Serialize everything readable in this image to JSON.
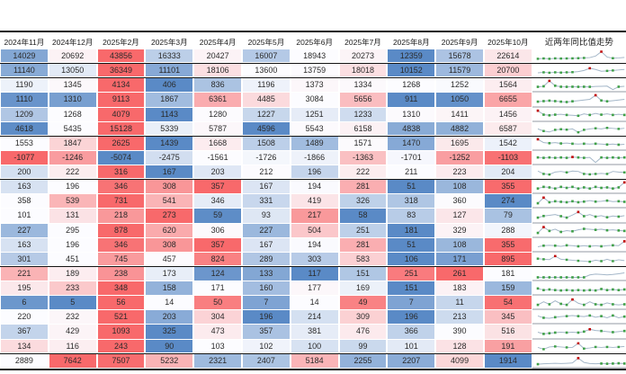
{
  "colors": {
    "scale_low": "#5A8AC6",
    "scale_mid": "#FCFCFF",
    "scale_high": "#F8696B",
    "spark_line": "#A3B6C8",
    "marker_green": "#3FA047",
    "marker_red": "#C00000",
    "group_line": "#141414"
  },
  "header": {
    "months": [
      "2024年11月",
      "2024年12月",
      "2025年2月",
      "2025年3月",
      "2025年4月",
      "2025年5月",
      "2025年6月",
      "2025年7月",
      "2025年8月",
      "2025年9月",
      "2025年10月"
    ],
    "trend_label": "近两年同比值走势"
  },
  "chart_data": {
    "type": "table",
    "columns": [
      "2024年11月",
      "2024年12月",
      "2025年2月",
      "2025年3月",
      "2025年4月",
      "2025年5月",
      "2025年6月",
      "2025年7月",
      "2025年8月",
      "2025年9月",
      "2025年10月"
    ],
    "trend_column": "近两年同比值走势",
    "color_scale": "per-row blue(min) → white(median) → red(max)",
    "group_break_after_rows": [
      1,
      2,
      6,
      9,
      15,
      21
    ],
    "rows": [
      {
        "values": [
          14029,
          20692,
          43856,
          16333,
          20427,
          16007,
          18943,
          20273,
          12359,
          15678,
          22614
        ]
      },
      {
        "values": [
          11140,
          13050,
          36349,
          11101,
          18106,
          13600,
          13759,
          18018,
          10152,
          11579,
          20700
        ]
      },
      {
        "values": [
          1190,
          1345,
          4134,
          406,
          836,
          1196,
          1373,
          1334,
          1268,
          1252,
          1564
        ]
      },
      {
        "values": [
          1110,
          1310,
          9113,
          1867,
          6361,
          4485,
          3084,
          5656,
          911,
          1050,
          6655
        ]
      },
      {
        "values": [
          1209,
          1268,
          4079,
          1143,
          1280,
          1227,
          1251,
          1233,
          1310,
          1411,
          1456
        ]
      },
      {
        "values": [
          4618,
          5435,
          15128,
          5339,
          5787,
          4596,
          5543,
          6158,
          4838,
          4882,
          6587
        ]
      },
      {
        "values": [
          1553,
          1847,
          2625,
          1439,
          1668,
          1508,
          1489,
          1571,
          1470,
          1695,
          1542
        ]
      },
      {
        "values": [
          -1077,
          -1246,
          -5074,
          -2475,
          -1561,
          -1726,
          -1866,
          -1363,
          -1701,
          -1252,
          -1103
        ]
      },
      {
        "values": [
          200,
          222,
          316,
          167,
          203,
          212,
          196,
          222,
          211,
          223,
          204
        ]
      },
      {
        "values": [
          163,
          196,
          346,
          308,
          357,
          167,
          194,
          281,
          51,
          108,
          355
        ]
      },
      {
        "values": [
          358,
          539,
          731,
          541,
          346,
          331,
          419,
          326,
          318,
          360,
          274
        ]
      },
      {
        "values": [
          101,
          131,
          218,
          273,
          59,
          93,
          217,
          58,
          83,
          127,
          79
        ]
      },
      {
        "values": [
          227,
          295,
          878,
          620,
          306,
          227,
          504,
          251,
          181,
          329,
          288
        ]
      },
      {
        "values": [
          163,
          196,
          346,
          308,
          357,
          167,
          194,
          281,
          51,
          108,
          355
        ]
      },
      {
        "values": [
          301,
          451,
          745,
          457,
          824,
          289,
          303,
          583,
          106,
          171,
          895
        ]
      },
      {
        "values": [
          221,
          189,
          238,
          173,
          124,
          133,
          117,
          151,
          251,
          261,
          181
        ]
      },
      {
        "values": [
          195,
          233,
          348,
          158,
          171,
          160,
          177,
          169,
          151,
          183,
          159
        ]
      },
      {
        "values": [
          6,
          5,
          56,
          14,
          50,
          7,
          14,
          49,
          7,
          11,
          54
        ]
      },
      {
        "values": [
          220,
          232,
          521,
          203,
          304,
          196,
          214,
          309,
          196,
          213,
          345
        ]
      },
      {
        "values": [
          367,
          429,
          1093,
          325,
          473,
          357,
          381,
          476,
          366,
          390,
          516
        ]
      },
      {
        "values": [
          134,
          116,
          243,
          90,
          103,
          102,
          100,
          99,
          101,
          128,
          191
        ]
      },
      {
        "values": [
          2889,
          7642,
          7507,
          5232,
          2321,
          2407,
          5184,
          2255,
          2207,
          4099,
          1914
        ]
      }
    ]
  },
  "sparklines": [
    {
      "points": [
        0.22,
        0.25,
        0.22,
        0.26,
        0.24,
        0.25,
        0.26,
        0.28,
        0.3,
        0.34,
        0.5,
        0.95,
        0.4,
        0.28,
        0.3,
        0.36
      ],
      "green": [
        0,
        1,
        2,
        3,
        4,
        5,
        6,
        7,
        8,
        13
      ],
      "red": 11
    },
    {
      "points": [
        0.25,
        0.3,
        0.26,
        0.3,
        0.28,
        0.3,
        0.32,
        0.38,
        0.5,
        0.72,
        0.6,
        0.42,
        0.45,
        0.5,
        0.55,
        0.6
      ],
      "green": [
        1,
        2,
        3,
        4,
        5,
        6,
        12,
        13
      ],
      "red": 9
    },
    {
      "points": [
        0.35,
        0.4,
        0.92,
        0.45,
        0.36,
        0.35,
        0.36,
        0.35,
        0.36,
        0.35,
        0.38,
        0.4,
        0.42,
        0.08,
        0.36,
        0.4
      ],
      "green": [
        0,
        1,
        3,
        4,
        5,
        6,
        7,
        8,
        9,
        14
      ],
      "red": 2
    },
    {
      "points": [
        0.3,
        0.36,
        0.4,
        0.36,
        0.3,
        0.27,
        0.34,
        0.4,
        0.46,
        0.52,
        0.92,
        0.42,
        0.34,
        0.4,
        0.46,
        0.52
      ],
      "green": [
        0,
        1,
        2,
        3,
        4,
        5,
        6,
        11,
        12
      ],
      "red": 10
    },
    {
      "points": [
        0.9,
        0.52,
        0.46,
        0.52,
        0.56,
        0.5,
        0.46,
        0.42,
        0.6,
        0.5,
        0.64,
        0.52,
        0.6,
        0.5,
        0.56,
        0.5
      ],
      "green": [
        1,
        2,
        3,
        5,
        7,
        9,
        11,
        13,
        15
      ],
      "red": 0
    },
    {
      "points": [
        0.5,
        0.28,
        0.18,
        0.4,
        0.46,
        0.42,
        0.5,
        0.15,
        0.4,
        0.5,
        0.56,
        0.5,
        0.6,
        0.55,
        0.5,
        0.56
      ],
      "green": [
        1,
        3,
        4,
        5,
        7,
        8,
        10,
        12,
        14
      ],
      "red": null
    },
    {
      "points": [
        0.92,
        0.6,
        0.55,
        0.6,
        0.52,
        0.56,
        0.5,
        0.46,
        0.5,
        0.46,
        0.5,
        0.46,
        0.42,
        0.46,
        0.4,
        0.44
      ],
      "green": [
        2,
        4,
        6,
        8,
        10,
        12,
        14
      ],
      "red": 0
    },
    {
      "points": [
        0.56,
        0.52,
        0.56,
        0.52,
        0.56,
        0.52,
        0.6,
        0.56,
        0.52,
        0.56,
        0.08,
        0.56,
        0.52,
        0.56,
        0.52,
        0.56
      ],
      "green": [
        0,
        1,
        2,
        3,
        4,
        5,
        7,
        8,
        11,
        12,
        13,
        14,
        15
      ],
      "red": 6
    },
    {
      "points": [
        0.6,
        0.3,
        0.24,
        0.5,
        0.56,
        0.46,
        0.6,
        0.56,
        0.3,
        0.26,
        0.3,
        0.36,
        0.3,
        0.56,
        0.5,
        0.46
      ],
      "green": [
        1,
        2,
        5,
        8,
        9,
        10,
        12,
        15
      ],
      "red": null
    },
    {
      "points": [
        0.34,
        0.5,
        0.44,
        0.34,
        0.5,
        0.4,
        0.5,
        0.34,
        0.44,
        0.34,
        0.5,
        0.4,
        0.44,
        0.34,
        0.44,
        0.92
      ],
      "green": [
        0,
        1,
        2,
        3,
        4,
        5,
        6,
        7,
        8,
        9,
        10,
        11,
        12,
        13,
        14
      ],
      "red": 15
    },
    {
      "points": [
        0.3,
        0.84,
        0.4,
        0.5,
        0.44,
        0.4,
        0.5,
        0.4,
        0.46,
        0.56,
        0.46,
        0.5,
        0.56,
        0.46,
        0.5,
        0.44
      ],
      "green": [
        0,
        2,
        3,
        4,
        5,
        6,
        7,
        8,
        10,
        12,
        14,
        15
      ],
      "red": 1
    },
    {
      "points": [
        0.3,
        0.46,
        0.52,
        0.6,
        0.44,
        0.3,
        0.56,
        0.84,
        0.44,
        0.6,
        0.4,
        0.5,
        0.34,
        0.46,
        0.4,
        0.5
      ],
      "green": [
        0,
        1,
        4,
        5,
        8,
        10,
        12,
        14
      ],
      "red": 7
    },
    {
      "points": [
        0.3,
        0.86,
        0.5,
        0.66,
        0.4,
        0.52,
        0.46,
        0.6,
        0.7,
        0.66,
        0.6,
        0.66,
        0.56,
        0.6,
        0.54,
        0.5
      ],
      "green": [
        0,
        2,
        4,
        6,
        8,
        10,
        12,
        14,
        15
      ],
      "red": 1
    },
    {
      "points": [
        0.36,
        0.46,
        0.5,
        0.46,
        0.4,
        0.5,
        0.46,
        0.4,
        0.46,
        0.4,
        0.46,
        0.4,
        0.46,
        0.5,
        0.46,
        0.88
      ],
      "green": [
        1,
        3,
        5,
        7,
        9,
        11,
        13
      ],
      "red": 15
    },
    {
      "points": [
        0.56,
        0.5,
        0.46,
        0.82,
        0.5,
        0.44,
        0.4,
        0.34,
        0.3,
        0.24,
        0.4,
        0.3,
        0.5,
        0.3,
        0.44,
        0.36
      ],
      "green": [
        0,
        1,
        5,
        7,
        9,
        11,
        13
      ],
      "red": 3
    },
    {
      "points": [
        0.18,
        0.18,
        0.18,
        0.18,
        0.18,
        0.18,
        0.18,
        0.18,
        0.18,
        0.42,
        0.5,
        0.46,
        0.42,
        0.46,
        0.52,
        0.62
      ],
      "green": [
        0,
        1,
        2,
        3,
        4,
        5,
        6,
        7,
        8
      ],
      "red": null
    },
    {
      "points": [
        0.5,
        0.34,
        0.4,
        0.34,
        0.3,
        0.34,
        0.3,
        0.34,
        0.3,
        0.34,
        0.3,
        0.44,
        0.34,
        0.4,
        0.34,
        0.4
      ],
      "green": [
        0,
        1,
        2,
        3,
        4,
        5,
        6,
        7,
        8,
        9,
        10,
        11,
        12,
        13,
        14,
        15
      ],
      "red": null
    },
    {
      "points": [
        0.3,
        0.6,
        0.36,
        0.7,
        0.4,
        0.3,
        0.82,
        0.46,
        0.3,
        0.6,
        0.36,
        0.3,
        0.5,
        0.36,
        0.3,
        0.36
      ],
      "green": [
        0,
        2,
        4,
        5,
        8,
        10,
        11,
        13,
        15
      ],
      "red": 6
    },
    {
      "points": [
        0.62,
        0.44,
        0.4,
        0.5,
        0.56,
        0.6,
        0.66,
        0.6,
        0.56,
        0.66,
        0.5,
        0.6,
        0.44,
        0.66,
        0.44,
        0.56
      ],
      "green": [
        1,
        3,
        5,
        7,
        9,
        11,
        13,
        15
      ],
      "red": null
    },
    {
      "points": [
        0.44,
        0.28,
        0.34,
        0.4,
        0.44,
        0.4,
        0.44,
        0.4,
        0.5,
        0.72,
        0.6,
        0.56,
        0.5,
        0.44,
        0.5,
        0.56
      ],
      "green": [
        1,
        2,
        3,
        5,
        7,
        8,
        11,
        13,
        15
      ],
      "red": 9
    },
    {
      "points": [
        0.4,
        0.22,
        0.44,
        0.5,
        0.44,
        0.4,
        0.4,
        0.82,
        0.28,
        0.34,
        0.44,
        0.4,
        0.44,
        0.4,
        0.44,
        0.5
      ],
      "green": [
        1,
        3,
        5,
        8,
        10,
        12,
        14
      ],
      "red": 7
    },
    {
      "points": [
        0.22,
        0.25,
        0.28,
        0.3,
        0.28,
        0.3,
        0.34,
        0.8,
        0.38,
        0.28,
        0.26,
        0.28,
        0.26,
        0.28,
        0.3,
        0.28
      ],
      "green": [
        0,
        11,
        12,
        13,
        14,
        15
      ],
      "red": 7
    }
  ]
}
